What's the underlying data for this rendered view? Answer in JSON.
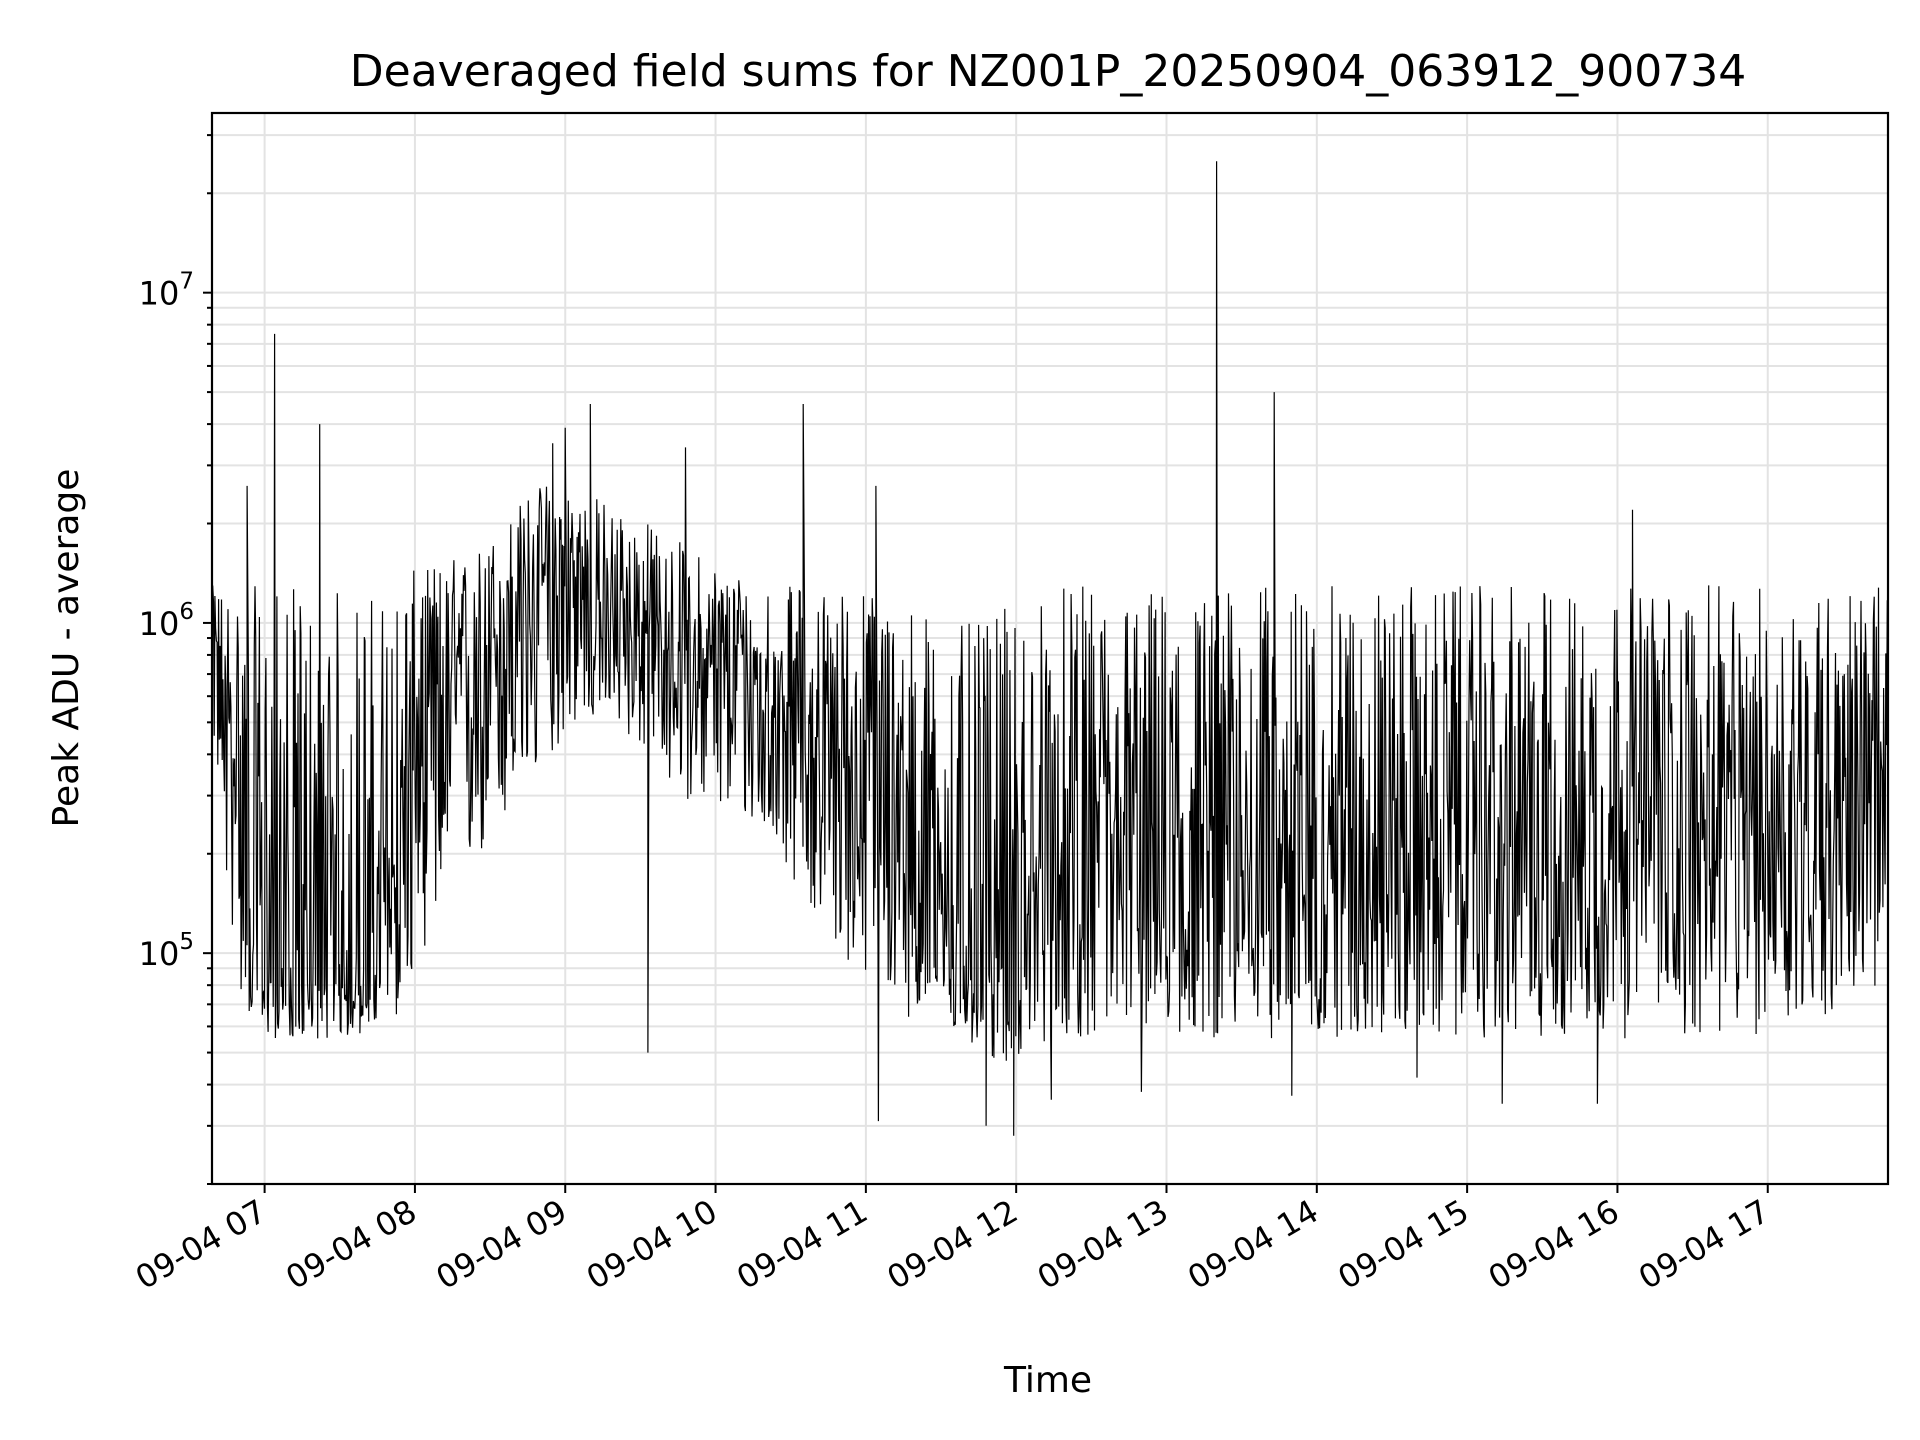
{
  "chart_data": {
    "type": "line",
    "title": "Deaveraged field sums for NZ001P_20250904_063912_900734",
    "xlabel": "Time",
    "ylabel": "Peak ADU - average",
    "yscale": "log",
    "ylim": [
      20000,
      35000000
    ],
    "xlim": [
      "2025-09-04 06:39",
      "2025-09-04 17:48"
    ],
    "grid": true,
    "line_color": "#000000",
    "x_ticks": [
      {
        "t": "2025-09-04 07:00",
        "label": "09-04 07"
      },
      {
        "t": "2025-09-04 08:00",
        "label": "09-04 08"
      },
      {
        "t": "2025-09-04 09:00",
        "label": "09-04 09"
      },
      {
        "t": "2025-09-04 10:00",
        "label": "09-04 10"
      },
      {
        "t": "2025-09-04 11:00",
        "label": "09-04 11"
      },
      {
        "t": "2025-09-04 12:00",
        "label": "09-04 12"
      },
      {
        "t": "2025-09-04 13:00",
        "label": "09-04 13"
      },
      {
        "t": "2025-09-04 14:00",
        "label": "09-04 14"
      },
      {
        "t": "2025-09-04 15:00",
        "label": "09-04 15"
      },
      {
        "t": "2025-09-04 16:00",
        "label": "09-04 16"
      },
      {
        "t": "2025-09-04 17:00",
        "label": "09-04 17"
      }
    ],
    "y_ticks": [
      {
        "value": 100000,
        "base": "10",
        "exp": "5"
      },
      {
        "value": 1000000,
        "base": "10",
        "exp": "6"
      },
      {
        "value": 10000000,
        "base": "10",
        "exp": "7"
      }
    ],
    "series": [
      {
        "x": [
          "2025-09-04 06:39",
          "2025-09-04 06:45",
          "2025-09-04 06:51",
          "2025-09-04 06:57",
          "2025-09-04 07:00",
          "2025-09-04 07:05",
          "2025-09-04 07:15",
          "2025-09-04 07:24",
          "2025-09-04 07:35",
          "2025-09-04 07:45",
          "2025-09-04 07:55",
          "2025-09-04 08:05",
          "2025-09-04 08:15",
          "2025-09-04 08:25",
          "2025-09-04 08:35",
          "2025-09-04 08:45",
          "2025-09-04 08:55",
          "2025-09-04 09:05",
          "2025-09-04 09:15",
          "2025-09-04 09:25",
          "2025-09-04 09:35",
          "2025-09-04 09:45",
          "2025-09-04 09:55",
          "2025-09-04 10:05",
          "2025-09-04 10:15",
          "2025-09-04 10:25",
          "2025-09-04 10:35",
          "2025-09-04 10:45",
          "2025-09-04 10:55",
          "2025-09-04 11:05",
          "2025-09-04 11:15",
          "2025-09-04 11:25",
          "2025-09-04 11:35",
          "2025-09-04 11:45",
          "2025-09-04 11:55",
          "2025-09-04 12:05",
          "2025-09-04 12:15",
          "2025-09-04 12:25",
          "2025-09-04 12:35",
          "2025-09-04 12:45",
          "2025-09-04 12:55",
          "2025-09-04 13:05",
          "2025-09-04 13:15",
          "2025-09-04 13:25",
          "2025-09-04 13:35",
          "2025-09-04 13:45",
          "2025-09-04 13:55",
          "2025-09-04 14:05",
          "2025-09-04 14:15",
          "2025-09-04 14:25",
          "2025-09-04 14:35",
          "2025-09-04 14:45",
          "2025-09-04 14:55",
          "2025-09-04 15:05",
          "2025-09-04 15:15",
          "2025-09-04 15:25",
          "2025-09-04 15:35",
          "2025-09-04 15:45",
          "2025-09-04 15:55",
          "2025-09-04 16:05",
          "2025-09-04 16:15",
          "2025-09-04 16:25",
          "2025-09-04 16:35",
          "2025-09-04 16:45",
          "2025-09-04 16:55",
          "2025-09-04 17:05",
          "2025-09-04 17:15",
          "2025-09-04 17:25",
          "2025-09-04 17:35",
          "2025-09-04 17:45",
          "2025-09-04 17:48"
        ],
        "y_median": [
          1000000,
          500000,
          300000,
          120000,
          90000,
          85000,
          85000,
          85000,
          80000,
          90000,
          250000,
          550000,
          600000,
          700000,
          1000000,
          1200000,
          1300000,
          1200000,
          1100000,
          1000000,
          900000,
          800000,
          750000,
          700000,
          650000,
          600000,
          500000,
          420000,
          380000,
          320000,
          260000,
          180000,
          120000,
          110000,
          100000,
          140000,
          170000,
          180000,
          190000,
          200000,
          200000,
          200000,
          200000,
          200000,
          200000,
          200000,
          200000,
          220000,
          230000,
          230000,
          220000,
          210000,
          210000,
          200000,
          200000,
          210000,
          220000,
          230000,
          230000,
          240000,
          240000,
          240000,
          240000,
          240000,
          250000,
          260000,
          280000,
          300000,
          320000,
          330000,
          340000
        ],
        "y_low": [
          500000,
          150000,
          70000,
          55000,
          55000,
          55000,
          55000,
          55000,
          55000,
          60000,
          65000,
          110000,
          160000,
          180000,
          230000,
          300000,
          400000,
          500000,
          500000,
          450000,
          380000,
          300000,
          280000,
          260000,
          240000,
          200000,
          150000,
          110000,
          90000,
          75000,
          65000,
          60000,
          55000,
          50000,
          45000,
          50000,
          55000,
          55000,
          55000,
          55000,
          55000,
          55000,
          55000,
          55000,
          55000,
          55000,
          55000,
          55000,
          55000,
          55000,
          55000,
          55000,
          55000,
          55000,
          55000,
          55000,
          55000,
          55000,
          55000,
          55000,
          55000,
          55000,
          55000,
          55000,
          55000,
          60000,
          60000,
          65000,
          70000,
          75000,
          80000
        ],
        "y_high": [
          1300000,
          1300000,
          1300000,
          1300000,
          1300000,
          1300000,
          1300000,
          1300000,
          1300000,
          1300000,
          1400000,
          1500000,
          1600000,
          1700000,
          2000000,
          2500000,
          2800000,
          2600000,
          2400000,
          2200000,
          2000000,
          1800000,
          1600000,
          1500000,
          1400000,
          1300000,
          1300000,
          1300000,
          1300000,
          1300000,
          1200000,
          1100000,
          1000000,
          1000000,
          1100000,
          1200000,
          1300000,
          1300000,
          1300000,
          1300000,
          1300000,
          1300000,
          1300000,
          1300000,
          1300000,
          1300000,
          1300000,
          1300000,
          1300000,
          1300000,
          1300000,
          1300000,
          1300000,
          1300000,
          1300000,
          1300000,
          1300000,
          1300000,
          1300000,
          1300000,
          1300000,
          1300000,
          1300000,
          1300000,
          1300000,
          1300000,
          1300000,
          1300000,
          1300000,
          1300000,
          1300000
        ]
      }
    ],
    "spikes": [
      {
        "t": "2025-09-04 06:53",
        "y": 2600000
      },
      {
        "t": "2025-09-04 07:04",
        "y": 7500000
      },
      {
        "t": "2025-09-04 07:22",
        "y": 4000000
      },
      {
        "t": "2025-09-04 08:55",
        "y": 3500000
      },
      {
        "t": "2025-09-04 09:00",
        "y": 3900000
      },
      {
        "t": "2025-09-04 09:10",
        "y": 4600000
      },
      {
        "t": "2025-09-04 09:48",
        "y": 3400000
      },
      {
        "t": "2025-09-04 10:35",
        "y": 4600000
      },
      {
        "t": "2025-09-04 11:04",
        "y": 2600000
      },
      {
        "t": "2025-09-04 13:20",
        "y": 25000000
      },
      {
        "t": "2025-09-04 13:43",
        "y": 5000000
      },
      {
        "t": "2025-09-04 16:06",
        "y": 2200000
      },
      {
        "t": "2025-09-04 11:48",
        "y": 30000
      },
      {
        "t": "2025-09-04 11:59",
        "y": 28000
      },
      {
        "t": "2025-09-04 11:05",
        "y": 31000
      },
      {
        "t": "2025-09-04 12:14",
        "y": 36000
      },
      {
        "t": "2025-09-04 12:50",
        "y": 38000
      },
      {
        "t": "2025-09-04 13:50",
        "y": 37000
      },
      {
        "t": "2025-09-04 14:40",
        "y": 42000
      },
      {
        "t": "2025-09-04 15:14",
        "y": 35000
      },
      {
        "t": "2025-09-04 15:52",
        "y": 35000
      },
      {
        "t": "2025-09-04 09:33",
        "y": 50000
      }
    ]
  }
}
